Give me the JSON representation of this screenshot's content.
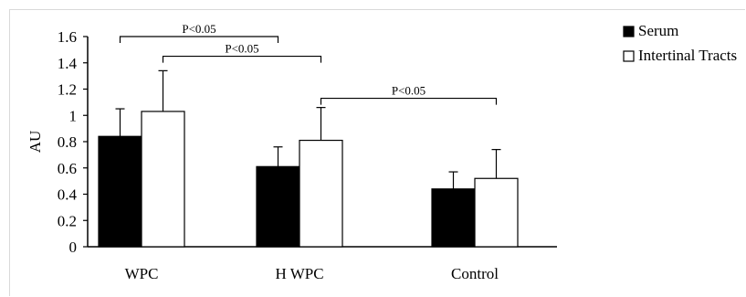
{
  "chart_data": {
    "type": "bar",
    "categories": [
      "WPC",
      "H WPC",
      "Control"
    ],
    "series": [
      {
        "name": "Serum",
        "values": [
          0.84,
          0.61,
          0.44
        ],
        "errors": [
          0.21,
          0.15,
          0.13
        ],
        "color": "#000000"
      },
      {
        "name": "Intertinal Tracts",
        "values": [
          1.03,
          0.81,
          0.52
        ],
        "errors": [
          0.31,
          0.25,
          0.22
        ],
        "color": "#ffffff"
      }
    ],
    "ylabel": "AU",
    "xlabel": "",
    "ylim": [
      0,
      1.6
    ],
    "yticks": [
      "0",
      "0.2",
      "0.4",
      "0.6",
      "0.8",
      "1",
      "1.2",
      "1.4",
      "1.6"
    ],
    "significance": [
      {
        "label": "P<0.05",
        "from_category": 0,
        "from_series": 0,
        "to_category": 1,
        "to_series": 0,
        "level": 1.6
      },
      {
        "label": "P<0.05",
        "from_category": 0,
        "from_series": 1,
        "to_category": 1,
        "to_series": 1,
        "level": 1.45
      },
      {
        "label": "P<0.05",
        "from_category": 1,
        "from_series": 1,
        "to_category": 2,
        "to_series": 1,
        "level": 1.13
      }
    ],
    "legend_position": "top-right",
    "grid": false
  }
}
